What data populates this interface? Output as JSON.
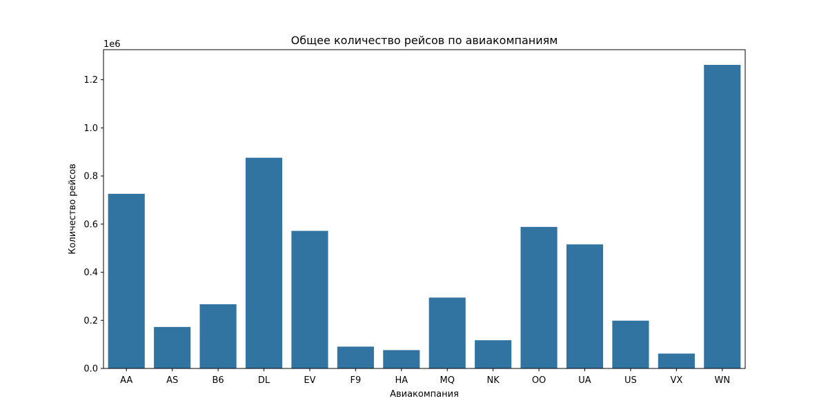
{
  "chart_data": {
    "type": "bar",
    "title": "Общее количество рейсов по авиакомпаниям",
    "xlabel": "Авиакомпания",
    "ylabel": "Количество рейсов",
    "y_scale_label": "1e6",
    "categories": [
      "AA",
      "AS",
      "B6",
      "DL",
      "EV",
      "F9",
      "HA",
      "MQ",
      "NK",
      "OO",
      "UA",
      "US",
      "VX",
      "WN"
    ],
    "values": [
      725984,
      172521,
      267048,
      875881,
      571977,
      90836,
      76272,
      294632,
      117379,
      588353,
      515723,
      198715,
      61903,
      1261855
    ],
    "ylim": [
      0,
      1325000
    ],
    "yticks": [
      0,
      200000,
      400000,
      600000,
      800000,
      1000000,
      1200000
    ],
    "ytick_labels": [
      "0.0",
      "0.2",
      "0.4",
      "0.6",
      "0.8",
      "1.0",
      "1.2"
    ],
    "grid": false,
    "bar_color": "#3274a1"
  }
}
